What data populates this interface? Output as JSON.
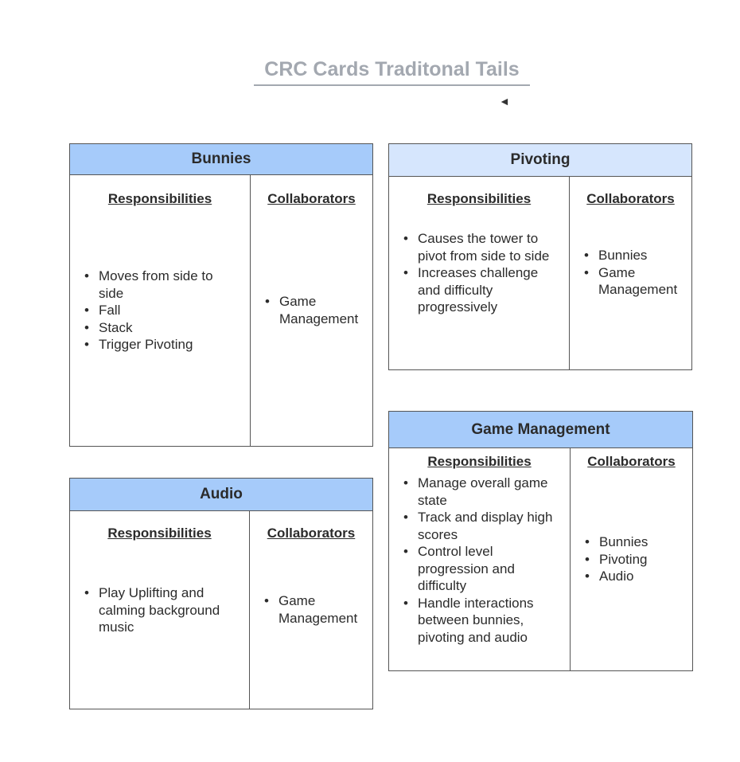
{
  "title": "CRC Cards Traditonal Tails",
  "arrow_glyph": "◄",
  "cards": {
    "bunnies": {
      "name": "Bunnies",
      "header_color": "#a6cbfa",
      "responsibilities_label": "Responsibilities",
      "collaborators_label": "Collaborators",
      "responsibilities": [
        "Moves from side to side",
        "Fall",
        "Stack",
        "Trigger Pivoting"
      ],
      "collaborators": [
        "Game Management"
      ]
    },
    "pivoting": {
      "name": "Pivoting",
      "header_color": "#d6e6fd",
      "responsibilities_label": "Responsibilities",
      "collaborators_label": "Collaborators",
      "responsibilities": [
        "Causes the tower to pivot from side to side",
        "Increases challenge and difficulty progressively"
      ],
      "collaborators": [
        "Bunnies",
        "Game Management"
      ]
    },
    "audio": {
      "name": "Audio",
      "header_color": "#a6cbfa",
      "responsibilities_label": "Responsibilities",
      "collaborators_label": "Collaborators",
      "responsibilities": [
        "Play Uplifting and calming background music"
      ],
      "collaborators": [
        "Game Management"
      ]
    },
    "game_management": {
      "name": "Game Management",
      "header_color": "#a6cbfa",
      "responsibilities_label": "Responsibilities",
      "collaborators_label": "Collaborators",
      "responsibilities": [
        "Manage overall game state",
        "Track and display high scores",
        "Control level progression and difficulty",
        "Handle interactions between bunnies, pivoting and audio"
      ],
      "collaborators": [
        "Bunnies",
        "Pivoting",
        "Audio"
      ]
    }
  }
}
